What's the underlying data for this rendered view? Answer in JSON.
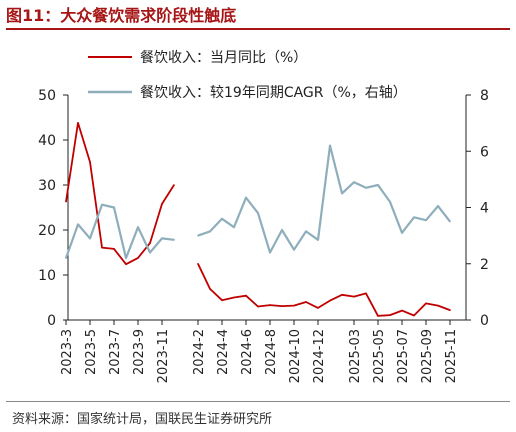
{
  "figure": {
    "title": "图11：大众餐饮需求阶段性触底",
    "source": "资料来源：国家统计局，国联民生证券研究所"
  },
  "colors": {
    "series1": "#c00000",
    "series2": "#8faebb",
    "title": "#a61616"
  },
  "chart_data": {
    "type": "line",
    "x": [
      "2023-3",
      "2023-4",
      "2023-5",
      "2023-6",
      "2023-7",
      "2023-8",
      "2023-9",
      "2023-10",
      "2023-11",
      "2023-12",
      "2024-1",
      "2024-2",
      "2024-3",
      "2024-4",
      "2024-5",
      "2024-6",
      "2024-7",
      "2024-8",
      "2024-9",
      "2024-10",
      "2024-11",
      "2024-12",
      "2025-01",
      "2025-02",
      "2025-03",
      "2025-04",
      "2025-05",
      "2025-06",
      "2025-07",
      "2025-08",
      "2025-09",
      "2025-10",
      "2025-11",
      "2025-12"
    ],
    "x_tick_labels": [
      "2023-3",
      "2023-5",
      "2023-7",
      "2023-9",
      "2023-11",
      "2024-2",
      "2024-4",
      "2024-6",
      "2024-8",
      "2024-10",
      "2024-12",
      "2025-03",
      "2025-05",
      "2025-07",
      "2025-09",
      "2025-11"
    ],
    "x_tick_positions": [
      "2023-3",
      "2023-5",
      "2023-7",
      "2023-9",
      "2023-11",
      "2024-2",
      "2024-4",
      "2024-6",
      "2024-8",
      "2024-10",
      "2024-12",
      "2025-03",
      "2025-05",
      "2025-07",
      "2025-09",
      "2025-11"
    ],
    "series": [
      {
        "name": "餐饮收入：当月同比（%）",
        "axis": "left",
        "values": [
          26.3,
          43.8,
          35.1,
          16.1,
          15.8,
          12.4,
          13.8,
          17.1,
          25.8,
          30.0,
          null,
          12.5,
          6.9,
          4.4,
          5.0,
          5.4,
          3.0,
          3.3,
          3.1,
          3.2,
          4.0,
          2.7,
          4.3,
          5.6,
          5.2,
          5.9,
          0.9,
          1.1,
          2.1,
          1.0,
          3.7,
          3.2,
          2.2,
          null
        ]
      },
      {
        "name": "餐饮收入：较19年同期CAGR（%，右轴）",
        "axis": "right",
        "values": [
          2.2,
          3.4,
          2.9,
          4.1,
          4.0,
          2.2,
          3.3,
          2.4,
          2.9,
          2.85,
          null,
          3.0,
          3.15,
          3.6,
          3.3,
          4.35,
          3.8,
          2.4,
          3.2,
          2.5,
          3.15,
          2.85,
          6.2,
          4.5,
          4.9,
          4.7,
          4.8,
          4.2,
          3.1,
          3.65,
          3.55,
          4.05,
          3.5,
          null
        ]
      }
    ],
    "y_left": {
      "min": 0,
      "max": 50,
      "ticks": [
        "0",
        "10",
        "20",
        "30",
        "40",
        "50"
      ]
    },
    "y_right": {
      "min": 0,
      "max": 8,
      "ticks": [
        "0",
        "2",
        "4",
        "6",
        "8"
      ]
    },
    "legend_position": "top-center",
    "grid": false
  }
}
